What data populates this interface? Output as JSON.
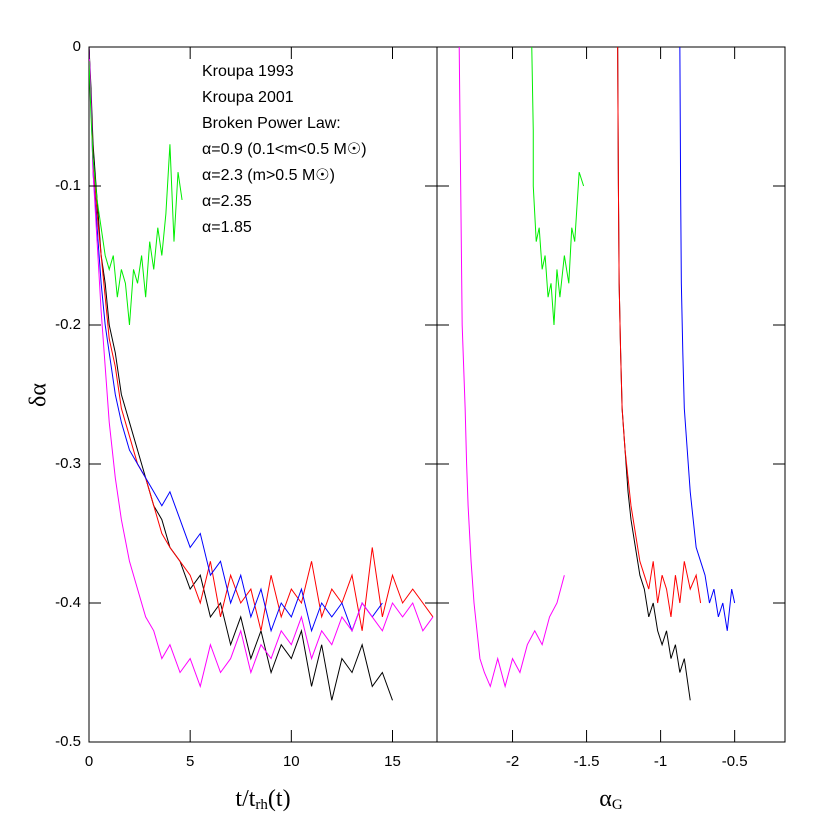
{
  "chart_data": [
    {
      "type": "line",
      "ylabel": "δα",
      "xlabel": {
        "main": "t/t",
        "sub": "rh",
        "tail": "(t)"
      },
      "xlim": [
        0,
        17.2
      ],
      "xticks": [
        0,
        5,
        10,
        15
      ],
      "ylim": [
        -0.5,
        0
      ],
      "yticks": [
        0,
        -0.1,
        -0.2,
        -0.3,
        -0.4,
        -0.5
      ],
      "series": [
        {
          "name": "Kroupa 1993",
          "color": "#000000",
          "x": [
            0,
            0.1,
            0.2,
            0.4,
            0.6,
            0.8,
            1,
            1.3,
            1.6,
            2,
            2.4,
            2.8,
            3.2,
            3.6,
            4,
            4.5,
            5,
            5.5,
            6,
            6.5,
            7,
            7.5,
            8,
            8.5,
            9,
            9.5,
            10,
            10.5,
            11,
            11.5,
            12,
            12.5,
            13,
            13.5,
            14,
            14.5,
            15
          ],
          "values": [
            0,
            -0.03,
            -0.07,
            -0.11,
            -0.15,
            -0.17,
            -0.2,
            -0.22,
            -0.25,
            -0.27,
            -0.29,
            -0.31,
            -0.33,
            -0.34,
            -0.36,
            -0.37,
            -0.39,
            -0.38,
            -0.41,
            -0.4,
            -0.43,
            -0.41,
            -0.44,
            -0.42,
            -0.45,
            -0.43,
            -0.44,
            -0.42,
            -0.46,
            -0.43,
            -0.47,
            -0.44,
            -0.45,
            -0.43,
            -0.46,
            -0.45,
            -0.47
          ]
        },
        {
          "name": "Kroupa 2001",
          "color": "#ff0000",
          "x": [
            0,
            0.1,
            0.2,
            0.4,
            0.6,
            0.8,
            1,
            1.3,
            1.6,
            2,
            2.4,
            2.8,
            3.2,
            3.6,
            4,
            4.5,
            5,
            5.5,
            6,
            6.5,
            7,
            7.5,
            8,
            8.5,
            9,
            9.5,
            10,
            10.5,
            11,
            11.5,
            12,
            12.5,
            13,
            13.5,
            14,
            14.5,
            15,
            15.5,
            16,
            16.5,
            17
          ],
          "values": [
            0,
            -0.04,
            -0.08,
            -0.12,
            -0.15,
            -0.18,
            -0.21,
            -0.23,
            -0.26,
            -0.28,
            -0.3,
            -0.31,
            -0.33,
            -0.35,
            -0.36,
            -0.37,
            -0.38,
            -0.4,
            -0.37,
            -0.41,
            -0.38,
            -0.4,
            -0.39,
            -0.42,
            -0.38,
            -0.41,
            -0.39,
            -0.4,
            -0.37,
            -0.41,
            -0.39,
            -0.4,
            -0.38,
            -0.42,
            -0.36,
            -0.41,
            -0.38,
            -0.4,
            -0.39,
            -0.4,
            -0.41
          ]
        },
        {
          "name": "Broken Power Law:",
          "color": "#0000ff",
          "description": [
            "α=0.9 (0.1<m<0.5 M☉)",
            "α=2.3 (m>0.5 M☉)"
          ],
          "x": [
            0,
            0.1,
            0.2,
            0.4,
            0.6,
            0.8,
            1,
            1.3,
            1.6,
            2,
            2.4,
            2.8,
            3.2,
            3.6,
            4,
            4.5,
            5,
            5.5,
            6,
            6.5,
            7,
            7.5,
            8,
            8.5,
            9,
            9.5,
            10,
            10.5,
            11,
            11.5,
            12,
            12.5,
            13,
            13.5,
            14,
            14.5
          ],
          "values": [
            0,
            -0.04,
            -0.09,
            -0.13,
            -0.17,
            -0.2,
            -0.22,
            -0.25,
            -0.27,
            -0.29,
            -0.3,
            -0.31,
            -0.32,
            -0.33,
            -0.32,
            -0.34,
            -0.36,
            -0.35,
            -0.38,
            -0.37,
            -0.4,
            -0.38,
            -0.41,
            -0.39,
            -0.42,
            -0.4,
            -0.41,
            -0.39,
            -0.42,
            -0.4,
            -0.41,
            -0.4,
            -0.42,
            -0.4,
            -0.41,
            -0.4
          ]
        },
        {
          "name": "α=2.35",
          "color": "#ff00ff",
          "x": [
            0,
            0.1,
            0.2,
            0.4,
            0.6,
            0.8,
            1,
            1.3,
            1.6,
            2,
            2.4,
            2.8,
            3.2,
            3.6,
            4,
            4.5,
            5,
            5.5,
            6,
            6.5,
            7,
            7.5,
            8,
            8.5,
            9,
            9.5,
            10,
            10.5,
            11,
            11.5,
            12,
            12.5,
            13,
            13.5,
            14,
            14.5,
            15,
            15.5,
            16,
            16.5,
            17
          ],
          "values": [
            0,
            -0.04,
            -0.09,
            -0.14,
            -0.19,
            -0.23,
            -0.27,
            -0.31,
            -0.34,
            -0.37,
            -0.39,
            -0.41,
            -0.42,
            -0.44,
            -0.43,
            -0.45,
            -0.44,
            -0.46,
            -0.43,
            -0.45,
            -0.44,
            -0.42,
            -0.45,
            -0.43,
            -0.44,
            -0.42,
            -0.43,
            -0.41,
            -0.44,
            -0.42,
            -0.43,
            -0.41,
            -0.42,
            -0.4,
            -0.41,
            -0.42,
            -0.4,
            -0.41,
            -0.4,
            -0.42,
            -0.41
          ]
        },
        {
          "name": "α=1.85",
          "color": "#00ee00",
          "x": [
            0,
            0.1,
            0.2,
            0.4,
            0.6,
            0.8,
            1,
            1.2,
            1.4,
            1.6,
            1.8,
            2,
            2.2,
            2.4,
            2.6,
            2.8,
            3,
            3.2,
            3.4,
            3.6,
            3.8,
            4,
            4.2,
            4.4,
            4.6
          ],
          "values": [
            -0.01,
            -0.05,
            -0.08,
            -0.11,
            -0.13,
            -0.15,
            -0.16,
            -0.15,
            -0.18,
            -0.16,
            -0.17,
            -0.2,
            -0.16,
            -0.17,
            -0.15,
            -0.18,
            -0.14,
            -0.16,
            -0.13,
            -0.15,
            -0.12,
            -0.07,
            -0.14,
            -0.09,
            -0.11
          ]
        }
      ]
    },
    {
      "type": "line",
      "xlabel": {
        "main": "α",
        "sub": "G"
      },
      "xlim": [
        -2.51,
        -0.16
      ],
      "xticks": [
        -2,
        -1.5,
        -1,
        -0.5
      ],
      "ylim": [
        -0.5,
        0
      ],
      "series": [
        {
          "color": "#ff00ff",
          "x": [
            -2.36,
            -2.35,
            -2.34,
            -2.32,
            -2.31,
            -2.3,
            -2.28,
            -2.26,
            -2.24,
            -2.22,
            -2.19,
            -2.15,
            -2.1,
            -2.05,
            -2.0,
            -1.95,
            -1.9,
            -1.85,
            -1.8,
            -1.75,
            -1.7,
            -1.65
          ],
          "values": [
            0,
            -0.1,
            -0.2,
            -0.26,
            -0.3,
            -0.33,
            -0.37,
            -0.4,
            -0.42,
            -0.44,
            -0.45,
            -0.46,
            -0.44,
            -0.46,
            -0.44,
            -0.45,
            -0.43,
            -0.42,
            -0.43,
            -0.41,
            -0.4,
            -0.38
          ]
        },
        {
          "color": "#00ee00",
          "x": [
            -1.87,
            -1.86,
            -1.86,
            -1.85,
            -1.84,
            -1.82,
            -1.8,
            -1.78,
            -1.76,
            -1.74,
            -1.72,
            -1.7,
            -1.68,
            -1.65,
            -1.62,
            -1.6,
            -1.58,
            -1.55,
            -1.52
          ],
          "values": [
            0,
            -0.06,
            -0.1,
            -0.12,
            -0.14,
            -0.13,
            -0.16,
            -0.15,
            -0.18,
            -0.17,
            -0.2,
            -0.16,
            -0.18,
            -0.15,
            -0.17,
            -0.13,
            -0.14,
            -0.09,
            -0.1
          ]
        },
        {
          "color": "#000000",
          "x": [
            -1.29,
            -1.285,
            -1.28,
            -1.27,
            -1.26,
            -1.24,
            -1.22,
            -1.2,
            -1.17,
            -1.14,
            -1.11,
            -1.08,
            -1.05,
            -1.02,
            -0.99,
            -0.96,
            -0.93,
            -0.9,
            -0.87,
            -0.84,
            -0.8
          ],
          "values": [
            0,
            -0.1,
            -0.17,
            -0.22,
            -0.26,
            -0.29,
            -0.32,
            -0.34,
            -0.36,
            -0.38,
            -0.39,
            -0.41,
            -0.4,
            -0.42,
            -0.43,
            -0.42,
            -0.44,
            -0.43,
            -0.45,
            -0.44,
            -0.47
          ]
        },
        {
          "color": "#ff0000",
          "x": [
            -1.29,
            -1.285,
            -1.28,
            -1.27,
            -1.26,
            -1.24,
            -1.22,
            -1.2,
            -1.17,
            -1.14,
            -1.11,
            -1.08,
            -1.05,
            -1.02,
            -0.99,
            -0.96,
            -0.93,
            -0.9,
            -0.87,
            -0.84,
            -0.8,
            -0.76,
            -0.73
          ],
          "values": [
            0,
            -0.1,
            -0.17,
            -0.22,
            -0.26,
            -0.29,
            -0.31,
            -0.33,
            -0.35,
            -0.37,
            -0.38,
            -0.39,
            -0.37,
            -0.4,
            -0.38,
            -0.39,
            -0.41,
            -0.38,
            -0.4,
            -0.37,
            -0.39,
            -0.38,
            -0.4
          ]
        },
        {
          "color": "#0000ff",
          "x": [
            -0.87,
            -0.865,
            -0.86,
            -0.85,
            -0.84,
            -0.82,
            -0.8,
            -0.78,
            -0.76,
            -0.73,
            -0.7,
            -0.67,
            -0.64,
            -0.61,
            -0.58,
            -0.55,
            -0.52,
            -0.5
          ],
          "values": [
            0,
            -0.1,
            -0.17,
            -0.22,
            -0.26,
            -0.29,
            -0.32,
            -0.34,
            -0.36,
            -0.37,
            -0.38,
            -0.4,
            -0.39,
            -0.41,
            -0.4,
            -0.42,
            -0.39,
            -0.4
          ]
        }
      ]
    }
  ]
}
